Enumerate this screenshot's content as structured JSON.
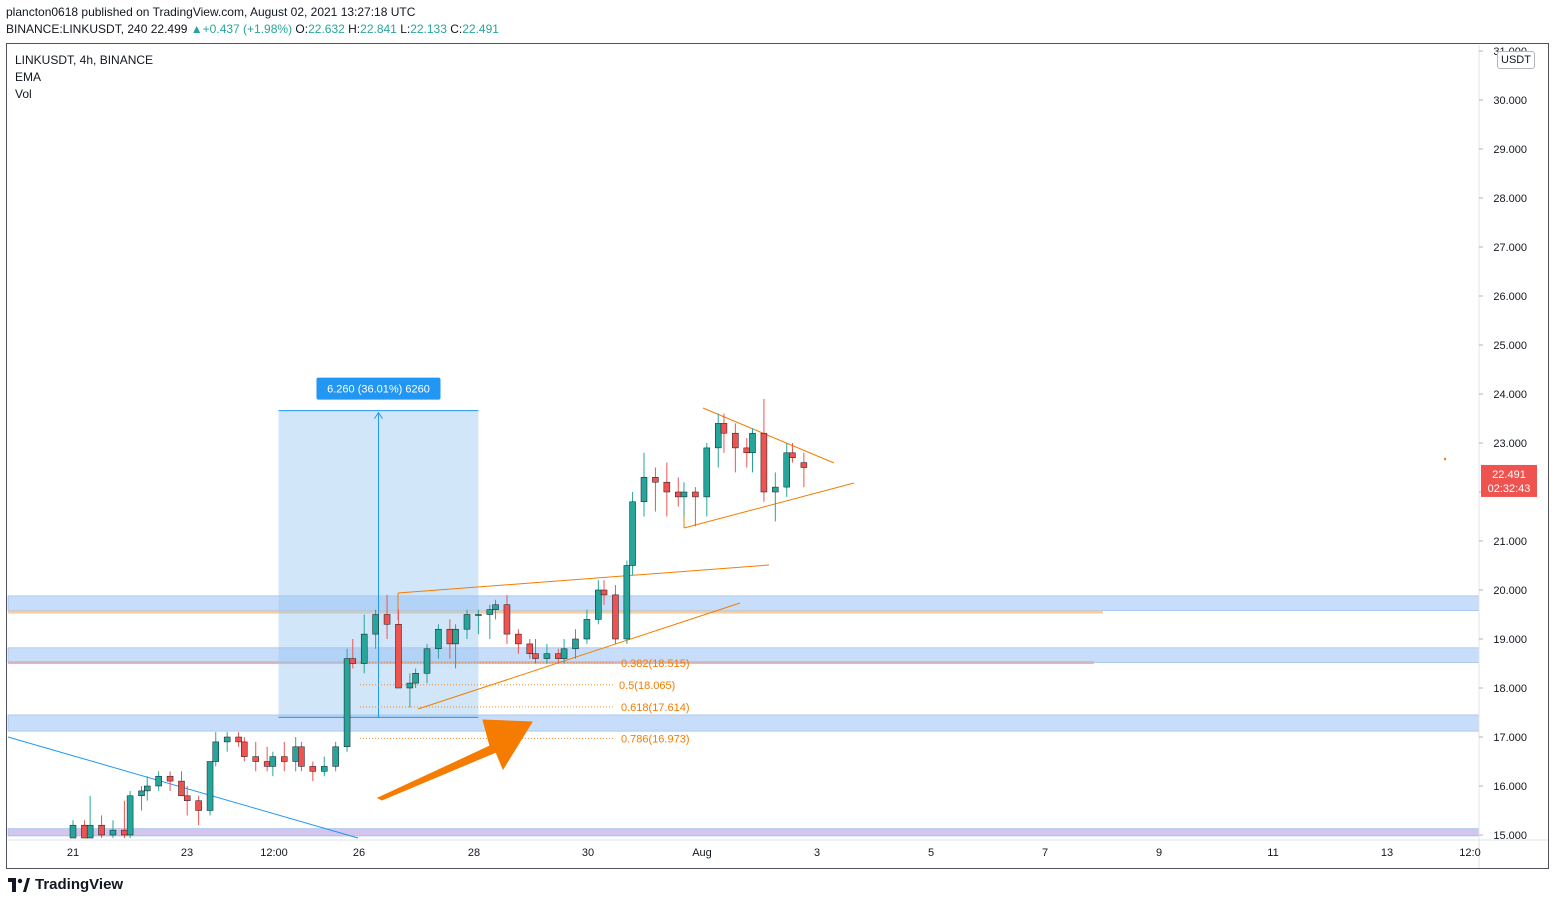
{
  "header": {
    "line1": "plancton0618 published on TradingView.com, August 02, 2021 13:27:18 UTC",
    "symbol_line": "BINANCE:LINKUSDT, 240",
    "last": "22.499",
    "change_arrow": "▲",
    "change": "+0.437 (+1.98%)",
    "o_label": "O:",
    "o_val": "22.632",
    "h_label": "H:",
    "h_val": "22.841",
    "l_label": "L:",
    "l_val": "22.133",
    "c_label": "C:",
    "c_val": "22.491"
  },
  "legend": {
    "title": "LINKUSDT, 4h, BINANCE",
    "ind1": "EMA",
    "ind2": "Vol"
  },
  "currency": "USDT",
  "brand": "TradingView",
  "price_label": {
    "value": "22.491",
    "countdown": "02:32:43",
    "color": "#ef5350"
  },
  "measure_label": "6.260 (36.01%) 6260",
  "fib_labels": [
    "0.382(18.515)",
    "0.5(18.065)",
    "0.618(17.614)",
    "0.786(16.973)"
  ],
  "colors": {
    "up": "#26a69a",
    "down": "#ef5350",
    "drawing": "#f57c00",
    "zone": "#90bff9",
    "measure": "#2196f3"
  },
  "chart_data": {
    "type": "candlestick",
    "symbol": "LINKUSDT",
    "timeframe": "4h",
    "exchange": "BINANCE",
    "y_ticks": [
      "31.000",
      "30.000",
      "29.000",
      "28.000",
      "27.000",
      "26.000",
      "25.000",
      "24.000",
      "23.000",
      "22.000",
      "21.000",
      "20.000",
      "19.000",
      "18.000",
      "17.000",
      "16.000",
      "15.000"
    ],
    "x_ticks": [
      "21",
      "23",
      "12:00",
      "26",
      "28",
      "30",
      "Aug",
      "3",
      "5",
      "7",
      "9",
      "11",
      "13",
      "12:0"
    ],
    "ylim": [
      14.98,
      30.7
    ],
    "candles": [
      [
        21.0,
        14.9,
        15.3,
        14.8,
        15.2
      ],
      [
        21.2,
        15.2,
        15.3,
        14.8,
        14.9
      ],
      [
        21.3,
        14.9,
        15.8,
        14.8,
        15.2
      ],
      [
        21.5,
        15.2,
        15.4,
        14.9,
        15.0
      ],
      [
        21.7,
        15.0,
        15.3,
        14.9,
        15.1
      ],
      [
        21.9,
        15.1,
        15.7,
        14.9,
        15.0
      ],
      [
        22.0,
        15.0,
        15.9,
        14.9,
        15.8
      ],
      [
        22.2,
        15.8,
        16.0,
        15.5,
        15.9
      ],
      [
        22.3,
        15.9,
        16.2,
        15.7,
        16.0
      ],
      [
        22.5,
        16.0,
        16.3,
        15.9,
        16.2
      ],
      [
        22.7,
        16.2,
        16.3,
        15.9,
        16.1
      ],
      [
        22.9,
        16.1,
        16.3,
        15.8,
        15.8
      ],
      [
        23.0,
        15.8,
        16.0,
        15.4,
        15.7
      ],
      [
        23.2,
        15.7,
        15.8,
        15.2,
        15.5
      ],
      [
        23.4,
        15.5,
        16.5,
        15.4,
        16.5
      ],
      [
        23.5,
        16.5,
        17.1,
        16.4,
        16.9
      ],
      [
        23.7,
        16.9,
        17.1,
        16.7,
        17.0
      ],
      [
        23.9,
        17.0,
        17.1,
        16.8,
        16.9
      ],
      [
        24.0,
        16.9,
        17.0,
        16.5,
        16.6
      ],
      [
        24.2,
        16.6,
        16.9,
        16.3,
        16.5
      ],
      [
        24.4,
        16.5,
        16.8,
        16.3,
        16.4
      ],
      [
        24.5,
        16.4,
        16.7,
        16.2,
        16.6
      ],
      [
        24.7,
        16.6,
        16.9,
        16.3,
        16.5
      ],
      [
        24.9,
        16.5,
        17.0,
        16.3,
        16.8
      ],
      [
        25.0,
        16.8,
        16.9,
        16.3,
        16.4
      ],
      [
        25.2,
        16.4,
        16.5,
        16.1,
        16.3
      ],
      [
        25.4,
        16.3,
        16.6,
        16.2,
        16.4
      ],
      [
        25.6,
        16.4,
        16.9,
        16.3,
        16.8
      ],
      [
        25.8,
        16.8,
        18.8,
        16.7,
        18.6
      ],
      [
        25.9,
        18.6,
        19.0,
        18.4,
        18.5
      ],
      [
        26.1,
        18.5,
        19.5,
        18.3,
        19.1
      ],
      [
        26.3,
        19.1,
        19.6,
        18.8,
        19.5
      ],
      [
        26.5,
        19.5,
        19.9,
        19.0,
        19.3
      ],
      [
        26.7,
        19.3,
        19.6,
        18.0,
        18.0
      ],
      [
        26.9,
        18.0,
        18.3,
        17.6,
        18.1
      ],
      [
        27.0,
        18.1,
        18.4,
        18.0,
        18.3
      ],
      [
        27.2,
        18.3,
        18.9,
        18.1,
        18.8
      ],
      [
        27.4,
        18.8,
        19.3,
        18.6,
        19.2
      ],
      [
        27.6,
        19.2,
        19.4,
        18.6,
        18.9
      ],
      [
        27.7,
        18.9,
        19.3,
        18.4,
        19.2
      ],
      [
        27.9,
        19.2,
        19.6,
        19.0,
        19.5
      ],
      [
        28.1,
        19.5,
        19.6,
        19.1,
        19.5
      ],
      [
        28.3,
        19.5,
        19.7,
        19.0,
        19.6
      ],
      [
        28.4,
        19.6,
        19.8,
        19.4,
        19.7
      ],
      [
        28.6,
        19.7,
        19.9,
        18.9,
        19.1
      ],
      [
        28.8,
        19.1,
        19.2,
        18.7,
        18.9
      ],
      [
        29.0,
        18.9,
        19.0,
        18.6,
        18.7
      ],
      [
        29.1,
        18.7,
        19.0,
        18.5,
        18.6
      ],
      [
        29.3,
        18.6,
        18.9,
        18.5,
        18.7
      ],
      [
        29.5,
        18.7,
        18.8,
        18.5,
        18.6
      ],
      [
        29.6,
        18.6,
        19.0,
        18.5,
        18.8
      ],
      [
        29.8,
        18.8,
        19.2,
        18.6,
        19.0
      ],
      [
        30.0,
        19.0,
        19.6,
        18.9,
        19.4
      ],
      [
        30.2,
        19.4,
        20.2,
        19.3,
        20.0
      ],
      [
        30.3,
        20.0,
        20.2,
        19.7,
        19.9
      ],
      [
        30.5,
        19.9,
        20.1,
        18.9,
        19.0
      ],
      [
        30.7,
        19.0,
        20.6,
        18.9,
        20.5
      ],
      [
        30.8,
        20.5,
        22.0,
        20.3,
        21.8
      ],
      [
        31.0,
        21.8,
        22.8,
        21.5,
        22.3
      ],
      [
        31.2,
        22.3,
        22.5,
        21.6,
        22.2
      ],
      [
        31.4,
        22.2,
        22.6,
        21.5,
        22.0
      ],
      [
        31.6,
        22.0,
        22.3,
        21.7,
        21.9
      ],
      [
        31.7,
        21.9,
        22.2,
        21.5,
        22.0
      ],
      [
        31.9,
        22.0,
        22.1,
        21.3,
        21.9
      ],
      [
        32.1,
        21.9,
        23.0,
        21.5,
        22.9
      ],
      [
        32.3,
        22.9,
        23.6,
        22.5,
        23.4
      ],
      [
        32.4,
        23.4,
        23.6,
        22.8,
        23.2
      ],
      [
        32.6,
        23.2,
        23.4,
        22.4,
        22.9
      ],
      [
        32.8,
        22.9,
        23.1,
        22.5,
        22.8
      ],
      [
        32.9,
        22.8,
        23.3,
        22.4,
        23.2
      ],
      [
        33.1,
        23.2,
        23.9,
        21.8,
        22.0
      ],
      [
        33.3,
        22.0,
        22.4,
        21.4,
        22.1
      ],
      [
        33.5,
        22.1,
        23.0,
        21.9,
        22.8
      ],
      [
        33.6,
        22.8,
        23.0,
        22.6,
        22.7
      ],
      [
        33.8,
        22.6,
        22.8,
        22.1,
        22.5
      ]
    ],
    "annotations": {
      "measure": {
        "from": 17.4,
        "to": 23.66,
        "x_from": 24.6,
        "x_to": 28.1
      },
      "zones": [
        [
          19.58,
          19.88
        ],
        [
          18.52,
          18.82
        ],
        [
          17.12,
          17.45
        ],
        [
          14.98,
          15.13
        ]
      ],
      "fibonacci": [
        {
          "level": "0.382",
          "price": 18.515
        },
        {
          "level": "0.5",
          "price": 18.065
        },
        {
          "level": "0.618",
          "price": 17.614
        },
        {
          "level": "0.786",
          "price": 16.973
        }
      ]
    }
  }
}
